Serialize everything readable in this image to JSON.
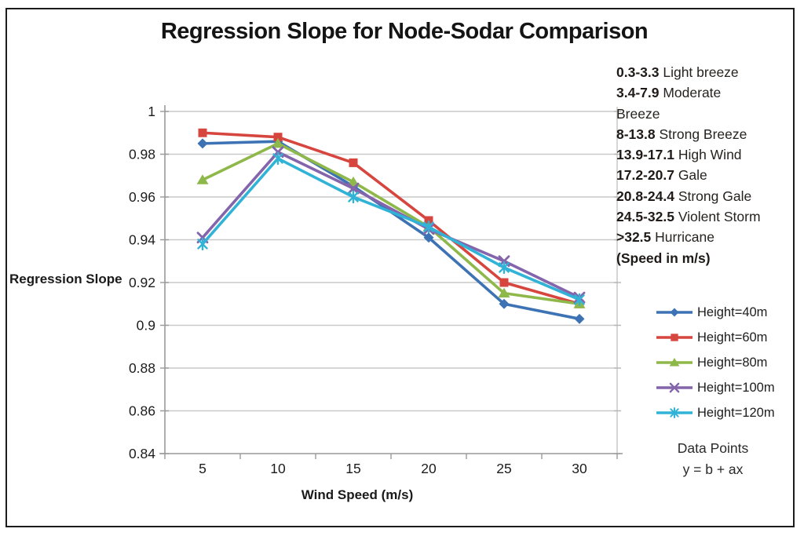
{
  "chart_data": {
    "type": "line",
    "title": "Regression Slope for Node-Sodar Comparison",
    "xlabel": "Wind Speed (m/s)",
    "ylabel": "Regression Slope",
    "categories": [
      "5",
      "10",
      "15",
      "20",
      "25",
      "30"
    ],
    "ylim": [
      0.84,
      1.0
    ],
    "y_step": 0.02,
    "grid": true,
    "legend_position": "right",
    "series": [
      {
        "name": "Height=40m",
        "color": "#3d72b4",
        "marker": "diamond",
        "values": [
          0.985,
          0.986,
          0.965,
          0.941,
          0.91,
          0.903
        ]
      },
      {
        "name": "Height=60m",
        "color": "#d6453e",
        "marker": "square",
        "values": [
          0.99,
          0.988,
          0.976,
          0.949,
          0.92,
          0.91
        ]
      },
      {
        "name": "Height=80m",
        "color": "#8eb94a",
        "marker": "triangle",
        "values": [
          0.968,
          0.985,
          0.967,
          0.946,
          0.915,
          0.91
        ]
      },
      {
        "name": "Height=100m",
        "color": "#8465ac",
        "marker": "x",
        "values": [
          0.941,
          0.981,
          0.964,
          0.945,
          0.93,
          0.913
        ]
      },
      {
        "name": "Height=120m",
        "color": "#31b3d7",
        "marker": "asterisk",
        "values": [
          0.938,
          0.978,
          0.96,
          0.946,
          0.927,
          0.912
        ]
      }
    ],
    "colors": {
      "grid": "#c9c9c9",
      "axis": "#999999",
      "tick_text": "#1c1c1c"
    }
  },
  "annotations": {
    "beaufort_scale": [
      {
        "b": "0.3-3.3",
        "t": " Light breeze"
      },
      {
        "b": "3.4-7.9",
        "t": " Moderate"
      },
      {
        "b": "",
        "t": "Breeze"
      },
      {
        "b": "8-13.8",
        "t": " Strong Breeze"
      },
      {
        "b": "13.9-17.1",
        "t": " High Wind"
      },
      {
        "b": "17.2-20.7",
        "t": " Gale"
      },
      {
        "b": "20.8-24.4",
        "t": " Strong Gale"
      },
      {
        "b": "24.5-32.5",
        "t": " Violent Storm"
      },
      {
        "b": ">32.5",
        "t": " Hurricane"
      },
      {
        "b": "(Speed in m/s)",
        "t": ""
      }
    ],
    "legend_note_line1": "Data Points",
    "legend_note_line2": "y = b + ax"
  }
}
